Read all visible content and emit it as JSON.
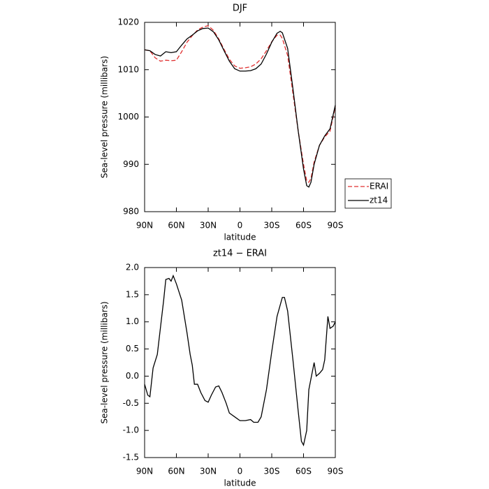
{
  "chart_data": [
    {
      "type": "line",
      "title": "DJF",
      "xlabel": "latitude",
      "ylabel": "Sea-level pressure (millibars)",
      "x": [
        90,
        85,
        80,
        75,
        70,
        65,
        60,
        55,
        50,
        45,
        40,
        35,
        30,
        25,
        20,
        15,
        10,
        5,
        0,
        -5,
        -10,
        -15,
        -20,
        -25,
        -30,
        -35,
        -38,
        -40,
        -45,
        -50,
        -55,
        -60,
        -63,
        -65,
        -67,
        -70,
        -75,
        -80,
        -85,
        -90
      ],
      "series": [
        {
          "name": "ERAI",
          "color": "#e03030",
          "dashed": true,
          "values": [
            1014.2,
            1014.0,
            1012.5,
            1011.8,
            1012.0,
            1011.9,
            1012.0,
            1013.8,
            1015.8,
            1017.2,
            1018.4,
            1019.0,
            1019.3,
            1018.3,
            1016.5,
            1014.3,
            1012.2,
            1010.8,
            1010.3,
            1010.4,
            1010.6,
            1011.2,
            1012.3,
            1014.0,
            1015.9,
            1017.3,
            1017.3,
            1016.6,
            1013.0,
            1005,
            997,
            990,
            986.5,
            986.2,
            987.0,
            990.5,
            994,
            995.8,
            997,
            1002.2
          ]
        },
        {
          "name": "zt14",
          "color": "#000000",
          "dashed": false,
          "values": [
            1014.2,
            1014.0,
            1013.2,
            1012.9,
            1013.8,
            1013.6,
            1013.8,
            1015.2,
            1016.5,
            1017.3,
            1018.2,
            1018.7,
            1018.8,
            1018.0,
            1016.3,
            1014.0,
            1011.8,
            1010.2,
            1009.7,
            1009.7,
            1009.8,
            1010.2,
            1011.2,
            1013.3,
            1015.8,
            1017.7,
            1018.1,
            1017.8,
            1014.5,
            1006,
            997,
            989,
            985.5,
            985.2,
            986.2,
            990,
            994,
            996,
            997.5,
            1002.5
          ]
        }
      ],
      "xlim": [
        90,
        -90
      ],
      "xticks": [
        {
          "value": 90,
          "label": "90N"
        },
        {
          "value": 60,
          "label": "60N"
        },
        {
          "value": 30,
          "label": "30N"
        },
        0,
        {
          "value": -30,
          "label": "30S"
        },
        {
          "value": -60,
          "label": "60S"
        },
        {
          "value": -90,
          "label": "90S"
        }
      ],
      "ylim": [
        980,
        1020
      ],
      "yticks": [
        980,
        990,
        1000,
        1010,
        1020
      ],
      "legend": "right"
    },
    {
      "type": "line",
      "title": "zt14 − ERAI",
      "xlabel": "latitude",
      "ylabel": "Sea-level pressure (millibars)",
      "x": [
        90,
        87,
        85,
        82,
        78,
        75,
        72,
        70,
        67,
        65,
        63,
        60,
        55,
        50,
        47,
        45,
        43,
        40,
        37,
        33,
        30,
        27,
        23,
        20,
        17,
        13,
        10,
        5,
        0,
        -5,
        -10,
        -13,
        -17,
        -20,
        -25,
        -30,
        -35,
        -40,
        -42,
        -45,
        -50,
        -55,
        -58,
        -60,
        -63,
        -65,
        -70,
        -72,
        -75,
        -78,
        -80,
        -83,
        -85,
        -88,
        -90
      ],
      "series": [
        {
          "color": "#000000",
          "dashed": false,
          "values": [
            -0.15,
            -0.35,
            -0.38,
            0.15,
            0.4,
            0.9,
            1.4,
            1.78,
            1.8,
            1.75,
            1.85,
            1.7,
            1.4,
            0.8,
            0.4,
            0.2,
            -0.15,
            -0.15,
            -0.3,
            -0.45,
            -0.48,
            -0.35,
            -0.2,
            -0.18,
            -0.3,
            -0.5,
            -0.68,
            -0.75,
            -0.82,
            -0.82,
            -0.8,
            -0.85,
            -0.85,
            -0.75,
            -0.25,
            0.45,
            1.1,
            1.45,
            1.45,
            1.2,
            0.3,
            -0.65,
            -1.2,
            -1.27,
            -1.0,
            -0.25,
            0.25,
            0.0,
            0.05,
            0.12,
            0.3,
            1.1,
            0.88,
            0.92,
            1.0
          ]
        }
      ],
      "xlim": [
        90,
        -90
      ],
      "xticks": [
        {
          "value": 90,
          "label": "90N"
        },
        {
          "value": 60,
          "label": "60N"
        },
        {
          "value": 30,
          "label": "30N"
        },
        0,
        {
          "value": -30,
          "label": "30S"
        },
        {
          "value": -60,
          "label": "60S"
        },
        {
          "value": -90,
          "label": "90S"
        }
      ],
      "ylim": [
        -1.5,
        2.0
      ],
      "yticks": [
        -1.5,
        {
          "value": -1.0,
          "label": "-1.0"
        },
        -0.5,
        {
          "value": 0.0,
          "label": "0.0"
        },
        0.5,
        {
          "value": 1.0,
          "label": "1.0"
        },
        1.5,
        {
          "value": 2.0,
          "label": "2.0"
        }
      ]
    }
  ]
}
